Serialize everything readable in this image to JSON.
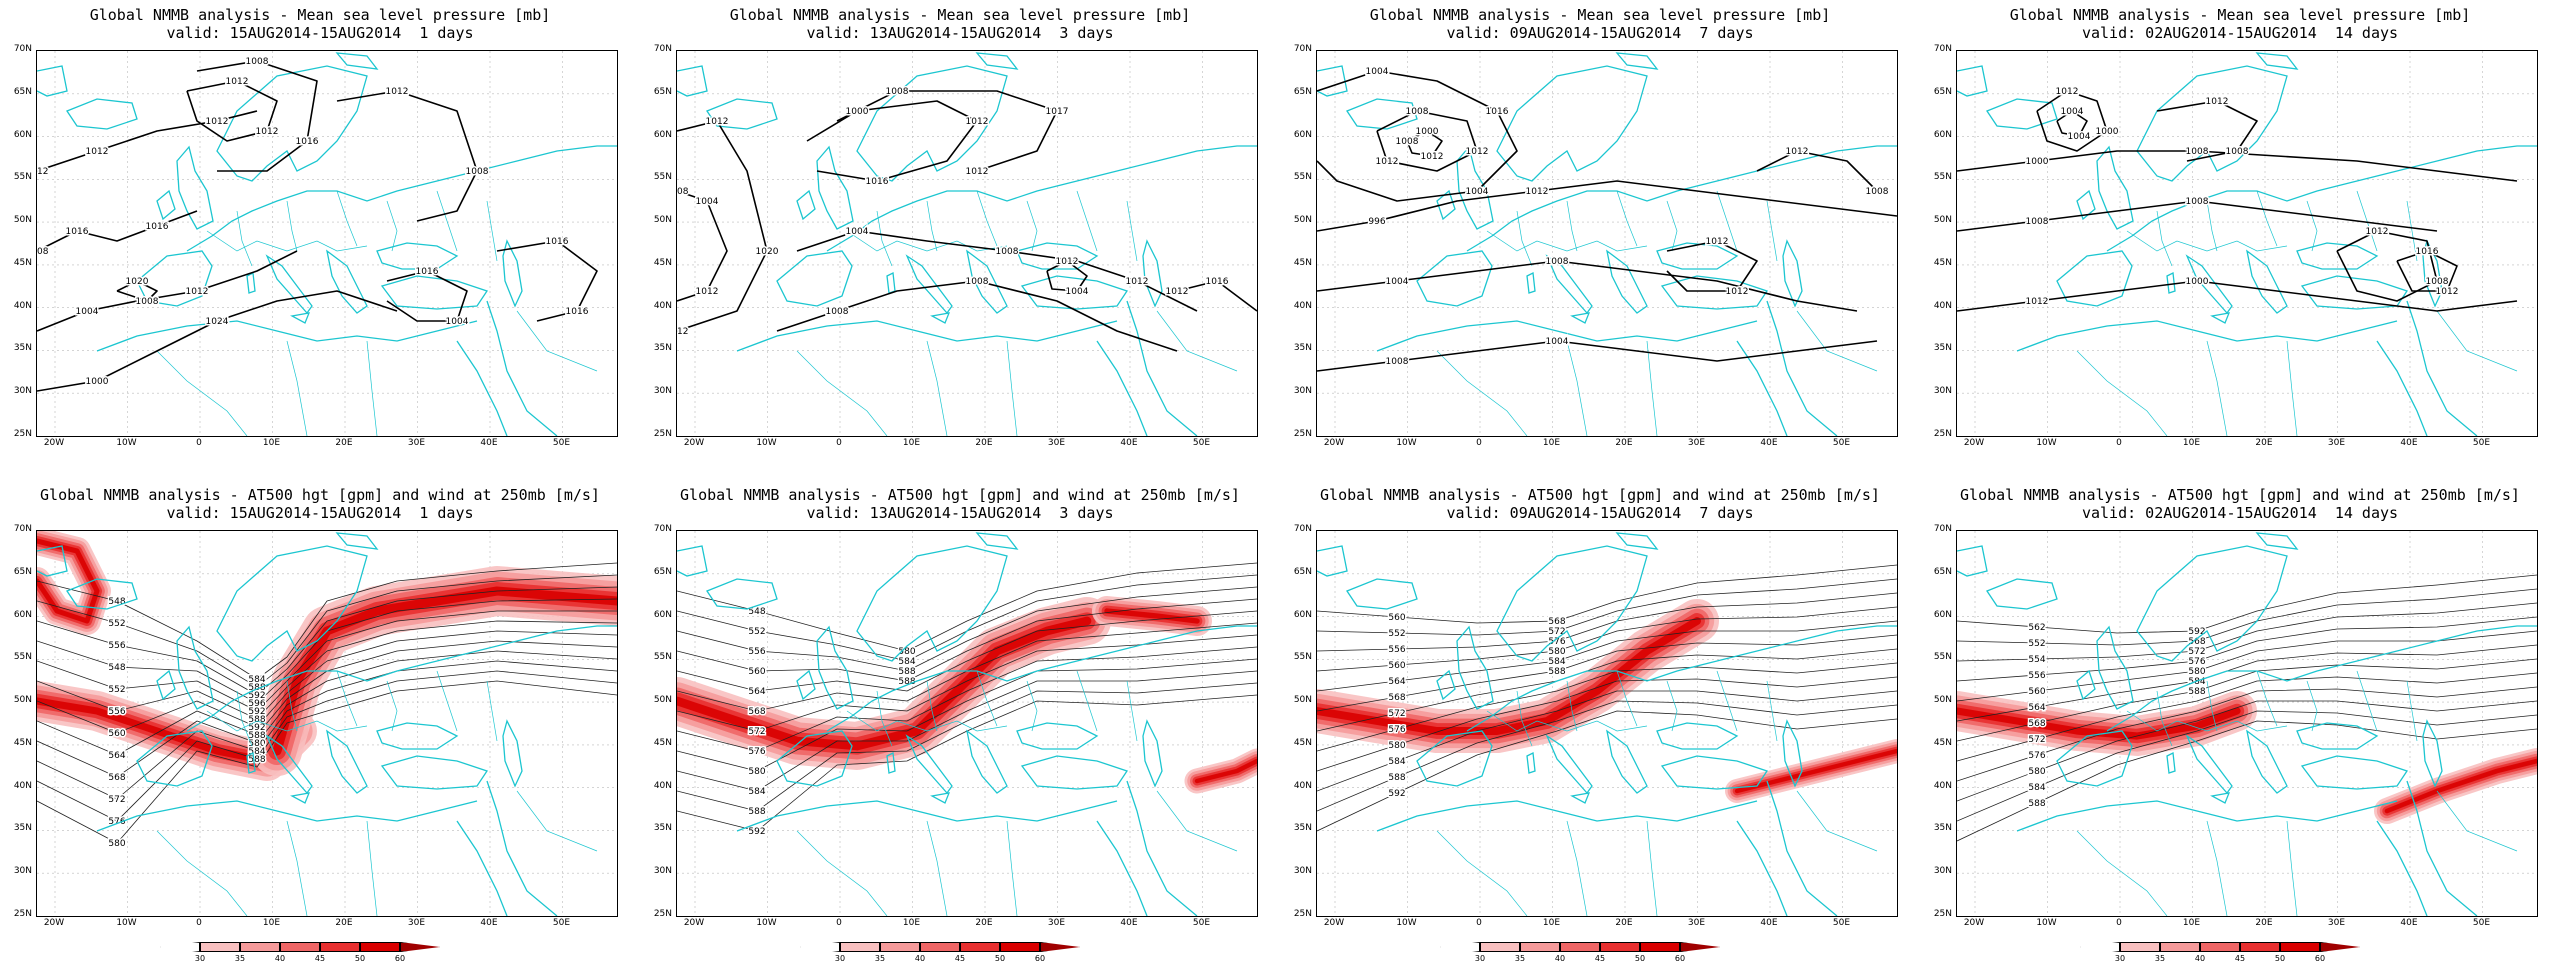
{
  "colors": {
    "coast": "#1cc6d0",
    "contour": "#000000",
    "jet_shades": [
      "#ffffff",
      "#f8c0c0",
      "#f59a9a",
      "#ef6666",
      "#e83030",
      "#d90000",
      "#a00000"
    ]
  },
  "mslp_panels": [
    {
      "title_line1": "Global NMMB analysis - Mean sea level pressure [mb]",
      "title_line2": "valid: 15AUG2014-15AUG2014  1 days",
      "contour_labels": [
        "1012",
        "1016",
        "1004",
        "1000",
        "1012",
        "1008",
        "1012",
        "1016",
        "1016",
        "1020",
        "1012",
        "1016",
        "1012",
        "1024",
        "1012",
        "1016",
        "1008",
        "1004",
        "1016",
        "1008",
        "1012",
        "1008"
      ]
    },
    {
      "title_line1": "Global NMMB analysis - Mean sea level pressure [mb]",
      "title_line2": "valid: 13AUG2014-15AUG2014  3 days",
      "contour_labels": [
        "1012",
        "1004",
        "1000",
        "1008",
        "1004",
        "1008",
        "1012",
        "1016",
        "1020",
        "1012",
        "1012",
        "1017",
        "1008",
        "1008",
        "1004",
        "1012",
        "1012",
        "1008",
        "1016",
        "1012",
        "1012"
      ]
    },
    {
      "title_line1": "Global NMMB analysis - Mean sea level pressure [mb]",
      "title_line2": "valid: 09AUG2014-15AUG2014  7 days",
      "contour_labels": [
        "1004",
        "1008",
        "1000",
        "996",
        "1004",
        "1008",
        "1012",
        "1012",
        "1016",
        "1012",
        "1012",
        "1012",
        "1008",
        "1004",
        "1012",
        "1008",
        "1004",
        "1012",
        "1008"
      ]
    },
    {
      "title_line1": "Global NMMB analysis - Mean sea level pressure [mb]",
      "title_line2": "valid: 02AUG2014-15AUG2014  14 days",
      "contour_labels": [
        "1012",
        "1004",
        "1000",
        "1008",
        "1012",
        "1012",
        "1016",
        "1012",
        "1000",
        "1004",
        "1008",
        "1008",
        "1000",
        "1008",
        "1012",
        "1008"
      ]
    }
  ],
  "hgt_panels": [
    {
      "title_line1": "Global NMMB analysis - AT500 hgt [gpm] and wind at 250mb [m/s]",
      "title_line2": "valid: 15AUG2014-15AUG2014  1 days",
      "contour_labels": [
        "548",
        "552",
        "556",
        "548",
        "552",
        "556",
        "560",
        "564",
        "568",
        "572",
        "576",
        "580",
        "584",
        "588",
        "592",
        "596",
        "592",
        "588",
        "592",
        "588",
        "580",
        "584",
        "588"
      ]
    },
    {
      "title_line1": "Global NMMB analysis - AT500 hgt [gpm] and wind at 250mb [m/s]",
      "title_line2": "valid: 13AUG2014-15AUG2014  3 days",
      "contour_labels": [
        "548",
        "552",
        "556",
        "560",
        "564",
        "568",
        "572",
        "576",
        "580",
        "584",
        "588",
        "592",
        "580",
        "584",
        "588",
        "588"
      ]
    },
    {
      "title_line1": "Global NMMB analysis - AT500 hgt [gpm] and wind at 250mb [m/s]",
      "title_line2": "valid: 09AUG2014-15AUG2014  7 days",
      "contour_labels": [
        "560",
        "552",
        "556",
        "560",
        "564",
        "568",
        "572",
        "576",
        "580",
        "584",
        "588",
        "592",
        "568",
        "572",
        "576",
        "580",
        "584",
        "588"
      ]
    },
    {
      "title_line1": "Global NMMB analysis - AT500 hgt [gpm] and wind at 250mb [m/s]",
      "title_line2": "valid: 02AUG2014-15AUG2014  14 days",
      "contour_labels": [
        "562",
        "552",
        "554",
        "556",
        "560",
        "564",
        "568",
        "572",
        "576",
        "580",
        "584",
        "588",
        "592",
        "568",
        "572",
        "576",
        "580",
        "584",
        "588"
      ]
    }
  ],
  "axes": {
    "lat_labels": [
      "70N",
      "65N",
      "60N",
      "55N",
      "50N",
      "45N",
      "40N",
      "35N",
      "30N",
      "25N"
    ],
    "lon_labels": [
      "20W",
      "10W",
      "0",
      "10E",
      "20E",
      "30E",
      "40E",
      "50E"
    ]
  },
  "colorbar": {
    "ticks": [
      "30",
      "35",
      "40",
      "45",
      "50",
      "60"
    ]
  }
}
